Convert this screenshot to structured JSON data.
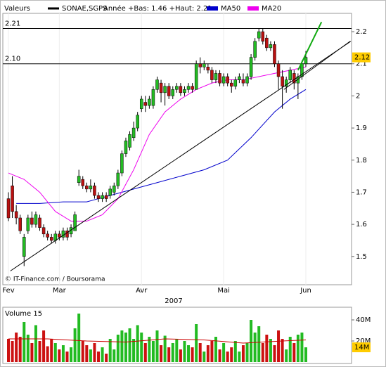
{
  "chart_data": {
    "type": "candlestick",
    "label": "Valeurs",
    "symbol": "SONAE,SGPS",
    "range_note": "Année +Bas: 1.46 +Haut: 2.21",
    "credit": "© IT-Finance.com / Boursorama",
    "year": "2007",
    "categories": [
      "Fev",
      null,
      null,
      null,
      null,
      null,
      null,
      null,
      null,
      null,
      null,
      null,
      null,
      "Mar",
      null,
      null,
      null,
      null,
      null,
      null,
      null,
      null,
      null,
      null,
      null,
      null,
      null,
      null,
      null,
      null,
      null,
      null,
      null,
      null,
      "Avr",
      null,
      null,
      null,
      null,
      null,
      null,
      null,
      null,
      null,
      null,
      null,
      null,
      null,
      null,
      null,
      null,
      null,
      null,
      null,
      null,
      "Mai",
      null,
      null,
      null,
      null,
      null,
      null,
      null,
      null,
      null,
      null,
      null,
      null,
      null,
      null,
      null,
      null,
      null,
      null,
      null,
      null,
      "Jun"
    ],
    "open": [
      1.68,
      1.72,
      1.64,
      1.62,
      1.5,
      1.58,
      1.62,
      1.6,
      1.62,
      1.59,
      1.57,
      1.56,
      1.55,
      1.57,
      1.56,
      1.58,
      1.57,
      1.58,
      1.73,
      1.74,
      1.72,
      1.71,
      1.72,
      1.69,
      1.68,
      1.69,
      1.69,
      1.7,
      1.72,
      1.76,
      1.82,
      1.84,
      1.87,
      1.9,
      1.96,
      1.98,
      1.97,
      1.97,
      2.02,
      2.04,
      2.01,
      2.03,
      2.0,
      2.02,
      2.03,
      2.01,
      2.02,
      2.03,
      2.02,
      2.1,
      2.09,
      2.09,
      2.08,
      2.05,
      2.07,
      2.04,
      2.06,
      2.04,
      2.03,
      2.05,
      2.05,
      2.04,
      2.06,
      2.12,
      2.18,
      2.2,
      2.18,
      2.15,
      2.16,
      2.1,
      2.06,
      2.03,
      2.05,
      2.07,
      2.04,
      2.06,
      2.1
    ],
    "high": [
      1.7,
      1.75,
      1.66,
      1.63,
      1.57,
      1.63,
      1.64,
      1.64,
      1.63,
      1.6,
      1.58,
      1.57,
      1.58,
      1.58,
      1.59,
      1.59,
      1.6,
      1.64,
      1.77,
      1.75,
      1.73,
      1.74,
      1.73,
      1.7,
      1.7,
      1.7,
      1.72,
      1.73,
      1.77,
      1.83,
      1.87,
      1.89,
      1.92,
      1.95,
      2.0,
      2.0,
      2.0,
      2.03,
      2.06,
      2.05,
      2.04,
      2.04,
      2.03,
      2.04,
      2.04,
      2.03,
      2.04,
      2.04,
      2.11,
      2.12,
      2.11,
      2.1,
      2.09,
      2.08,
      2.08,
      2.07,
      2.07,
      2.05,
      2.06,
      2.07,
      2.07,
      2.07,
      2.13,
      2.18,
      2.21,
      2.21,
      2.19,
      2.17,
      2.17,
      2.11,
      2.08,
      2.06,
      2.09,
      2.08,
      2.07,
      2.11,
      2.14
    ],
    "low": [
      1.61,
      1.62,
      1.6,
      1.57,
      1.47,
      1.57,
      1.59,
      1.59,
      1.58,
      1.56,
      1.55,
      1.54,
      1.54,
      1.55,
      1.55,
      1.55,
      1.56,
      1.58,
      1.72,
      1.71,
      1.7,
      1.7,
      1.68,
      1.67,
      1.67,
      1.67,
      1.68,
      1.69,
      1.71,
      1.75,
      1.81,
      1.83,
      1.86,
      1.89,
      1.95,
      1.95,
      1.96,
      1.96,
      2.01,
      1.98,
      1.97,
      1.99,
      1.99,
      2.01,
      2.0,
      2.0,
      2.01,
      2.01,
      2.02,
      2.07,
      2.08,
      2.07,
      2.04,
      2.04,
      2.03,
      2.03,
      2.03,
      2.01,
      2.02,
      2.04,
      2.03,
      2.03,
      2.05,
      2.11,
      2.17,
      2.16,
      2.14,
      2.14,
      2.09,
      2.02,
      1.96,
      2.01,
      2.04,
      2.02,
      1.99,
      2.05,
      2.09
    ],
    "close": [
      1.62,
      1.64,
      1.62,
      1.58,
      1.56,
      1.62,
      1.6,
      1.63,
      1.59,
      1.57,
      1.56,
      1.55,
      1.57,
      1.56,
      1.58,
      1.56,
      1.59,
      1.63,
      1.75,
      1.72,
      1.71,
      1.72,
      1.69,
      1.68,
      1.69,
      1.68,
      1.71,
      1.72,
      1.76,
      1.82,
      1.86,
      1.88,
      1.9,
      1.94,
      1.99,
      1.97,
      1.99,
      2.02,
      2.05,
      2.01,
      2.03,
      2.0,
      2.02,
      2.03,
      2.01,
      2.02,
      2.03,
      2.02,
      2.1,
      2.09,
      2.1,
      2.08,
      2.05,
      2.07,
      2.04,
      2.06,
      2.04,
      2.03,
      2.05,
      2.06,
      2.04,
      2.06,
      2.12,
      2.17,
      2.2,
      2.17,
      2.15,
      2.16,
      2.1,
      2.06,
      2.03,
      2.05,
      2.08,
      2.04,
      2.06,
      2.1,
      2.12
    ],
    "last_price": 2.12,
    "ylim": [
      1.412,
      2.257
    ],
    "yticks": [
      1.5,
      1.6,
      1.7,
      1.8,
      1.9,
      2,
      2.1,
      2.2
    ],
    "hlines": [
      2.21,
      {
        "value": 2.1,
        "label": "2.10"
      }
    ],
    "moving_averages": [
      {
        "name": "MA50",
        "color": "#0000cc",
        "x": [
          2,
          8,
          14,
          20,
          26,
          32,
          38,
          44,
          50,
          56,
          62,
          68,
          72,
          76
        ],
        "values": [
          1.665,
          1.665,
          1.67,
          1.67,
          1.69,
          1.71,
          1.73,
          1.75,
          1.77,
          1.8,
          1.87,
          1.95,
          1.99,
          2.02
        ]
      },
      {
        "name": "MA20",
        "color": "#ee00ee",
        "x": [
          0,
          4,
          8,
          12,
          16,
          20,
          24,
          28,
          32,
          36,
          40,
          44,
          48,
          52,
          56,
          60,
          64,
          68,
          72,
          76
        ],
        "values": [
          1.76,
          1.74,
          1.7,
          1.64,
          1.61,
          1.61,
          1.63,
          1.68,
          1.77,
          1.88,
          1.95,
          1.99,
          2.02,
          2.04,
          2.05,
          2.05,
          2.06,
          2.07,
          2.08,
          2.09
        ]
      }
    ],
    "trendlines": [
      {
        "color": "#000000",
        "x": [
          0.5,
          87.5
        ],
        "values": [
          1.455,
          2.17
        ]
      },
      {
        "color": "#000000",
        "x": [
          70.4,
          87.3
        ],
        "values": [
          2.02,
          2.17
        ]
      },
      {
        "color": "#11aa11",
        "x": [
          74,
          80
        ],
        "values": [
          2.08,
          2.23
        ]
      }
    ],
    "volume": {
      "title": "Volume 15",
      "values": [
        22,
        20,
        28,
        24,
        38,
        26,
        18,
        35,
        20,
        30,
        15,
        22,
        18,
        12,
        16,
        10,
        14,
        32,
        46,
        20,
        16,
        12,
        18,
        10,
        14,
        8,
        22,
        12,
        26,
        30,
        28,
        32,
        22,
        35,
        28,
        18,
        24,
        20,
        30,
        16,
        25,
        14,
        18,
        22,
        12,
        20,
        16,
        14,
        36,
        18,
        10,
        16,
        20,
        24,
        12,
        18,
        10,
        14,
        20,
        10,
        16,
        18,
        40,
        28,
        34,
        18,
        26,
        22,
        16,
        30,
        22,
        12,
        24,
        18,
        26,
        28,
        14
      ],
      "ma": {
        "color": "#cc0000",
        "x": [
          0,
          10,
          20,
          30,
          40,
          50,
          60,
          70,
          76
        ],
        "values": [
          22,
          22,
          20,
          19,
          22,
          21,
          18,
          20,
          21
        ]
      },
      "ylim": [
        0,
        52
      ],
      "yticks": [
        {
          "value": 40,
          "label": "40M"
        },
        {
          "value": 20,
          "label": "20M"
        }
      ],
      "last": {
        "value": 14,
        "label": "14M"
      }
    }
  }
}
